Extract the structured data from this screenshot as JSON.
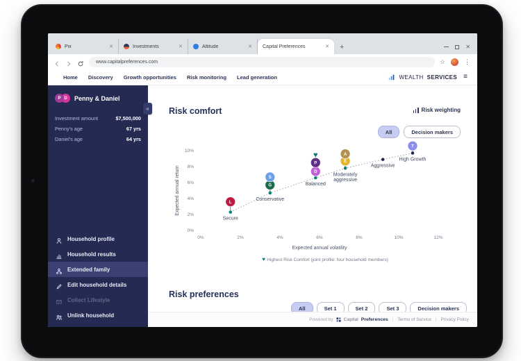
{
  "browser": {
    "tabs": [
      {
        "title": "Pix",
        "favicon": "pie-favicon",
        "active": false
      },
      {
        "title": "Investments",
        "favicon": "planet-favicon",
        "active": false
      },
      {
        "title": "Altitude",
        "favicon": "globe-favicon",
        "active": false
      },
      {
        "title": "Capital Preferences",
        "favicon": "",
        "active": true
      }
    ],
    "url": "www.capitalpreferences.com",
    "icons": {
      "new_tab": "+",
      "close": "✕",
      "star": "☆",
      "kebab": "⋮"
    }
  },
  "nav": {
    "links": [
      "Home",
      "Discovery",
      "Growth opportunities",
      "Risk monitoring",
      "Lead generation"
    ],
    "brand": {
      "part1": "WEALTH",
      "part2": "SERVICES",
      "menu_icon": "≡"
    }
  },
  "sidebar": {
    "household": {
      "name": "Penny & Daniel",
      "avatars": [
        "P",
        "D"
      ]
    },
    "collapse_icon": "«",
    "stats": [
      {
        "label": "Investment amount",
        "value": "$7,500,000"
      },
      {
        "label": "Penny's age",
        "value": "67 yrs"
      },
      {
        "label": "Daniel's age",
        "value": "64 yrs"
      }
    ],
    "menu": [
      {
        "label": "Household profile",
        "icon": "person-icon",
        "state": "normal"
      },
      {
        "label": "Household results",
        "icon": "chart-icon",
        "state": "normal"
      },
      {
        "label": "Extended family",
        "icon": "family-icon",
        "state": "selected"
      },
      {
        "label": "Edit household details",
        "icon": "pencil-icon",
        "state": "normal"
      },
      {
        "label": "Collect Lifestyle",
        "icon": "envelope-icon",
        "state": "disabled"
      },
      {
        "label": "Unlink household",
        "icon": "people-icon",
        "state": "normal"
      }
    ]
  },
  "main": {
    "section_title": "Risk comfort",
    "risk_weighting_label": "Risk weighting",
    "filters": [
      {
        "label": "All",
        "active": true
      },
      {
        "label": "Decision makers",
        "active": false
      }
    ],
    "section2_title": "Risk preferences",
    "bottom_filters": [
      {
        "label": "All",
        "active": true
      },
      {
        "label": "Set 1",
        "active": false
      },
      {
        "label": "Set 2",
        "active": false
      },
      {
        "label": "Set 3",
        "active": false
      },
      {
        "label": "Decision makers",
        "active": false
      }
    ]
  },
  "chart_data": {
    "type": "scatter",
    "xlabel": "Expected annual volatility",
    "ylabel": "Expected annual return",
    "x_ticks": [
      "0%",
      "2%",
      "4%",
      "6%",
      "8%",
      "10%",
      "12%"
    ],
    "y_ticks": [
      "0%",
      "2%",
      "4%",
      "6%",
      "8%",
      "10%"
    ],
    "xlim": [
      0,
      12
    ],
    "ylim": [
      0,
      11
    ],
    "grid": false,
    "profiles": [
      {
        "name": "Secure",
        "label_lines": [
          "Secure"
        ],
        "x": 1.5,
        "y": 2.3,
        "color": "teal"
      },
      {
        "name": "Conservative",
        "label_lines": [
          "Conservative"
        ],
        "x": 3.5,
        "y": 4.7,
        "color": "teal"
      },
      {
        "name": "Balanced",
        "label_lines": [
          "Balanced"
        ],
        "x": 5.8,
        "y": 6.6,
        "color": "teal"
      },
      {
        "name": "Moderately aggressive",
        "label_lines": [
          "Moderately",
          "aggressive"
        ],
        "x": 7.3,
        "y": 7.8,
        "color": "teal"
      },
      {
        "name": "Aggressive",
        "label_lines": [
          "Aggressive"
        ],
        "x": 9.2,
        "y": 8.9,
        "color": "navy"
      },
      {
        "name": "High Growth",
        "label_lines": [
          "High Growth"
        ],
        "x": 10.7,
        "y": 9.7,
        "color": "navy"
      }
    ],
    "members": [
      {
        "initial": "L",
        "profile": "Secure",
        "y": 3.6,
        "color": "#c11a41",
        "shape": "circle"
      },
      {
        "initial": "G",
        "profile": "Conservative",
        "y": 5.7,
        "color": "#1e6b4b",
        "shape": "circle"
      },
      {
        "initial": "S",
        "profile": "Conservative",
        "y": 6.7,
        "color": "#6f9fe8",
        "shape": "circle"
      },
      {
        "initial": "D",
        "profile": "Balanced",
        "y": 7.4,
        "color": "#c05fd6",
        "shape": "circle"
      },
      {
        "initial": "P",
        "profile": "Balanced",
        "y": 8.5,
        "color": "#5d2e84",
        "shape": "circle"
      },
      {
        "initial": "",
        "profile": "Balanced",
        "y": 9.5,
        "color": "#0c7d72",
        "shape": "heart"
      },
      {
        "initial": "E",
        "profile": "Moderately aggressive",
        "y": 8.7,
        "color": "#e5b32f",
        "shape": "circle"
      },
      {
        "initial": "A",
        "profile": "Moderately aggressive",
        "y": 9.6,
        "color": "#b3904f",
        "shape": "circle"
      },
      {
        "initial": "T",
        "profile": "High Growth",
        "y": 10.6,
        "color": "#8d8ee9",
        "shape": "circle"
      }
    ],
    "point_colors": {
      "teal": "#0e7f73",
      "navy": "#232a4d"
    },
    "legend": "Highest Risk Comfort (joint profile: four household members)",
    "legend_marker": "♥"
  },
  "footer": {
    "powered_by": "Powered by",
    "brand1": "Capital",
    "brand2": "Preferences",
    "links": [
      "Terms of Service",
      "Privacy Policy"
    ]
  }
}
